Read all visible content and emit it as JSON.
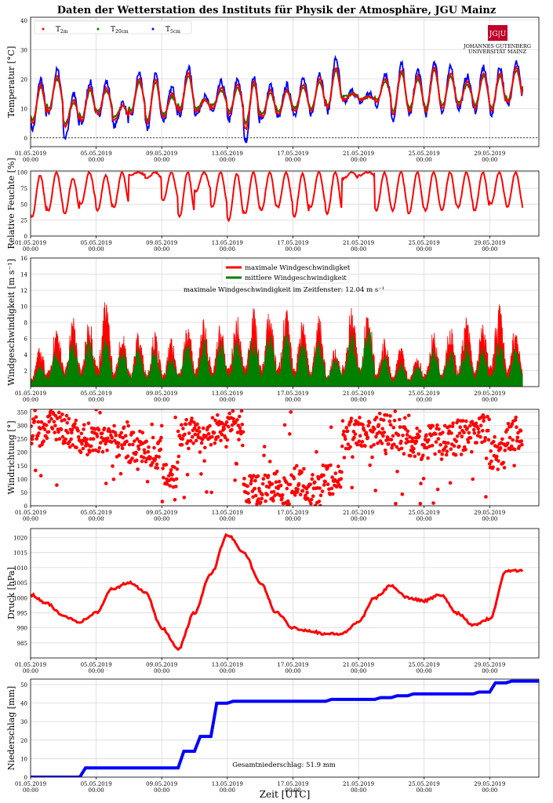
{
  "title": "Daten der Wetterstation des Instituts für Physik der Atmosphäre, JGU Mainz",
  "logo": {
    "badge": "JG|U",
    "line1": "JOHANNES GUTENBERG",
    "line2": "UNIVERSITÄT MAINZ",
    "color": "#c1002a"
  },
  "x_axis_label": "Zeit [UTC]",
  "x_ticks": [
    "01.05.2019",
    "05.05.2019",
    "09.05.2019",
    "13.05.2019",
    "17.05.2019",
    "21.05.2019",
    "25.05.2019",
    "29.05.2019"
  ],
  "x_tick_time": "00:00",
  "colors": {
    "red": "#ff0000",
    "green": "#008000",
    "blue": "#0000ff"
  },
  "chart_data": [
    {
      "id": "temperature",
      "type": "line",
      "ylabel": "Temperatur [°C]",
      "ylim": [
        -3,
        41
      ],
      "yticks": [
        0,
        10,
        20,
        30,
        40
      ],
      "legend_placement": "top-left",
      "legend": [
        {
          "name": "T",
          "sub": "2m",
          "color": "#ff0000"
        },
        {
          "name": "T",
          "sub": "20cm",
          "color": "#008000"
        },
        {
          "name": "T",
          "sub": "5cm",
          "color": "#0000ff"
        }
      ],
      "zero_line": true,
      "x": [
        1,
        2,
        3,
        4,
        5,
        6,
        7,
        8,
        9,
        10,
        11,
        12,
        13,
        14,
        15,
        16,
        17,
        18,
        19,
        20,
        21,
        22,
        23,
        24,
        25,
        26,
        27,
        28,
        29,
        30,
        31
      ],
      "series": [
        {
          "name": "T2m",
          "color": "#ff0000",
          "daily_min": [
            5,
            9,
            4,
            6,
            8,
            6,
            8,
            5,
            7,
            9,
            9,
            10,
            8,
            3,
            7,
            8,
            9,
            9,
            10,
            13,
            13,
            12,
            8,
            9,
            9,
            10,
            11,
            10,
            9,
            12,
            15
          ],
          "daily_max": [
            18,
            21,
            13,
            17,
            17,
            11,
            20,
            20,
            15,
            22,
            13,
            17,
            18,
            19,
            16,
            16,
            18,
            20,
            24,
            15,
            14,
            20,
            23,
            21,
            24,
            22,
            19,
            22,
            22,
            24,
            26
          ]
        },
        {
          "name": "T20cm",
          "color": "#008000",
          "daily_min": [
            6,
            10,
            5,
            7,
            9,
            7,
            9,
            6,
            8,
            10,
            10,
            11,
            9,
            5,
            8,
            9,
            10,
            10,
            11,
            14,
            13,
            13,
            9,
            10,
            10,
            11,
            12,
            11,
            10,
            13,
            16
          ],
          "daily_max": [
            17,
            20,
            12,
            16,
            16,
            11,
            19,
            19,
            14,
            21,
            13,
            16,
            17,
            18,
            15,
            16,
            17,
            19,
            23,
            15,
            14,
            19,
            22,
            20,
            23,
            21,
            18,
            21,
            21,
            23,
            25
          ]
        },
        {
          "name": "T5cm",
          "color": "#0000ff",
          "daily_min": [
            3,
            8,
            0,
            5,
            7,
            4,
            7,
            3,
            6,
            8,
            8,
            9,
            6,
            -1,
            6,
            7,
            8,
            8,
            9,
            12,
            12,
            11,
            6,
            8,
            8,
            9,
            10,
            9,
            8,
            11,
            14
          ],
          "daily_max": [
            20,
            23,
            15,
            19,
            19,
            12,
            22,
            22,
            17,
            24,
            14,
            19,
            20,
            21,
            18,
            18,
            20,
            22,
            27,
            16,
            15,
            22,
            25,
            23,
            26,
            24,
            21,
            24,
            24,
            26,
            28
          ]
        }
      ]
    },
    {
      "id": "humidity",
      "type": "line",
      "ylabel": "Relative Feuchte [%]",
      "ylim": [
        0,
        102
      ],
      "yticks": [
        0,
        25,
        50,
        75,
        100
      ],
      "x": [
        1,
        2,
        3,
        4,
        5,
        6,
        7,
        8,
        9,
        10,
        11,
        12,
        13,
        14,
        15,
        16,
        17,
        18,
        19,
        20,
        21,
        22,
        23,
        24,
        25,
        26,
        27,
        28,
        29,
        30,
        31
      ],
      "series": [
        {
          "name": "Relative Feuchte",
          "color": "#ff0000",
          "daily_min": [
            30,
            40,
            35,
            50,
            40,
            45,
            95,
            90,
            55,
            30,
            70,
            45,
            25,
            35,
            40,
            45,
            30,
            45,
            35,
            90,
            95,
            40,
            40,
            35,
            40,
            40,
            45,
            40,
            50,
            45,
            40
          ],
          "daily_max": [
            95,
            100,
            90,
            100,
            95,
            100,
            100,
            100,
            100,
            100,
            100,
            100,
            98,
            100,
            100,
            100,
            98,
            100,
            100,
            100,
            100,
            100,
            100,
            100,
            100,
            100,
            100,
            100,
            100,
            100,
            100
          ]
        }
      ]
    },
    {
      "id": "wind_speed",
      "type": "area",
      "ylabel": "Windgeschwindigkeit [m s⁻¹]",
      "ylim": [
        0,
        16
      ],
      "yticks": [
        2,
        4,
        6,
        8,
        10,
        12,
        14,
        16
      ],
      "legend_placement": "top-center",
      "legend": [
        {
          "name": "maximale Windgeschwindigket",
          "color": "#ff0000"
        },
        {
          "name": "mittlere Windgeschwindigkeit",
          "color": "#008000"
        }
      ],
      "annotation": "maximale Windgeschwindigkeit im Zeitfenster: 12.04 m s⁻¹",
      "x": [
        1,
        2,
        3,
        4,
        5,
        6,
        7,
        8,
        9,
        10,
        11,
        12,
        13,
        14,
        15,
        16,
        17,
        18,
        19,
        20,
        21,
        22,
        23,
        24,
        25,
        26,
        27,
        28,
        29,
        30,
        31
      ],
      "series": [
        {
          "name": "maximale Windgeschwindigket",
          "color": "#ff0000",
          "daily_peak": [
            5,
            8,
            9,
            9,
            11,
            7,
            7,
            7,
            6,
            8,
            9,
            8,
            9,
            10,
            10,
            10,
            9,
            9,
            5,
            10,
            11,
            6,
            5,
            4,
            7,
            8,
            9,
            8,
            11,
            8,
            7
          ]
        },
        {
          "name": "mittlere Windgeschwindigkeit",
          "color": "#008000",
          "daily_peak": [
            3,
            5,
            6,
            6,
            6,
            5,
            5,
            5,
            4,
            6,
            6,
            6,
            6,
            7,
            7,
            7,
            6,
            6,
            4,
            7,
            8,
            4,
            3,
            3,
            5,
            5,
            6,
            5,
            6,
            5,
            4
          ]
        }
      ]
    },
    {
      "id": "wind_direction",
      "type": "scatter",
      "ylabel": "Windrichtung [°]",
      "ylim": [
        0,
        360
      ],
      "yticks": [
        0,
        50,
        100,
        150,
        200,
        250,
        300,
        350
      ],
      "x": [
        1,
        2,
        3,
        4,
        5,
        6,
        7,
        8,
        9,
        10,
        11,
        12,
        13,
        14,
        15,
        16,
        17,
        18,
        19,
        20,
        21,
        22,
        23,
        24,
        25,
        26,
        27,
        28,
        29,
        30,
        31
      ],
      "series": [
        {
          "name": "Windrichtung",
          "color": "#ff0000",
          "dominant": [
            280,
            300,
            270,
            250,
            260,
            240,
            220,
            200,
            120,
            270,
            250,
            280,
            300,
            60,
            60,
            60,
            80,
            60,
            100,
            270,
            280,
            280,
            270,
            230,
            250,
            250,
            260,
            280,
            200,
            270,
            250
          ]
        }
      ]
    },
    {
      "id": "pressure",
      "type": "line",
      "ylabel": "Druck [hPa]",
      "ylim": [
        980,
        1023
      ],
      "yticks": [
        985,
        990,
        995,
        1000,
        1005,
        1010,
        1015,
        1020
      ],
      "x": [
        1,
        2,
        3,
        4,
        5,
        6,
        7,
        8,
        9,
        10,
        11,
        12,
        13,
        14,
        15,
        16,
        17,
        18,
        19,
        20,
        21,
        22,
        23,
        24,
        25,
        26,
        27,
        28,
        29,
        30,
        31
      ],
      "series": [
        {
          "name": "Druck",
          "color": "#ff0000",
          "values": [
            1001,
            998,
            994,
            992,
            995,
            1003,
            1005,
            1002,
            990,
            983,
            995,
            1008,
            1021,
            1015,
            1005,
            995,
            990,
            989,
            988,
            988,
            992,
            1000,
            1004,
            1000,
            999,
            1001,
            995,
            991,
            993,
            1009,
            1009
          ]
        }
      ]
    },
    {
      "id": "precipitation",
      "type": "line",
      "ylabel": "Niederschlag [mm]",
      "ylim": [
        0,
        53
      ],
      "yticks": [
        0,
        10,
        20,
        30,
        40,
        50
      ],
      "annotation": "Gesamtniederschlag: 51.9 mm",
      "x": [
        1,
        2,
        3,
        4,
        5,
        6,
        7,
        8,
        9,
        10,
        11,
        12,
        13,
        14,
        15,
        16,
        17,
        18,
        19,
        20,
        21,
        22,
        23,
        24,
        25,
        26,
        27,
        28,
        29,
        30,
        31
      ],
      "series": [
        {
          "name": "Niederschlag",
          "color": "#0000ff",
          "values": [
            0,
            0,
            0,
            5,
            5,
            5,
            5,
            5,
            5,
            14,
            22,
            40,
            41,
            41,
            41,
            41,
            41,
            41,
            42,
            42,
            42,
            43,
            44,
            45,
            45,
            45,
            45,
            46,
            51,
            51.9,
            51.9
          ]
        }
      ]
    }
  ]
}
